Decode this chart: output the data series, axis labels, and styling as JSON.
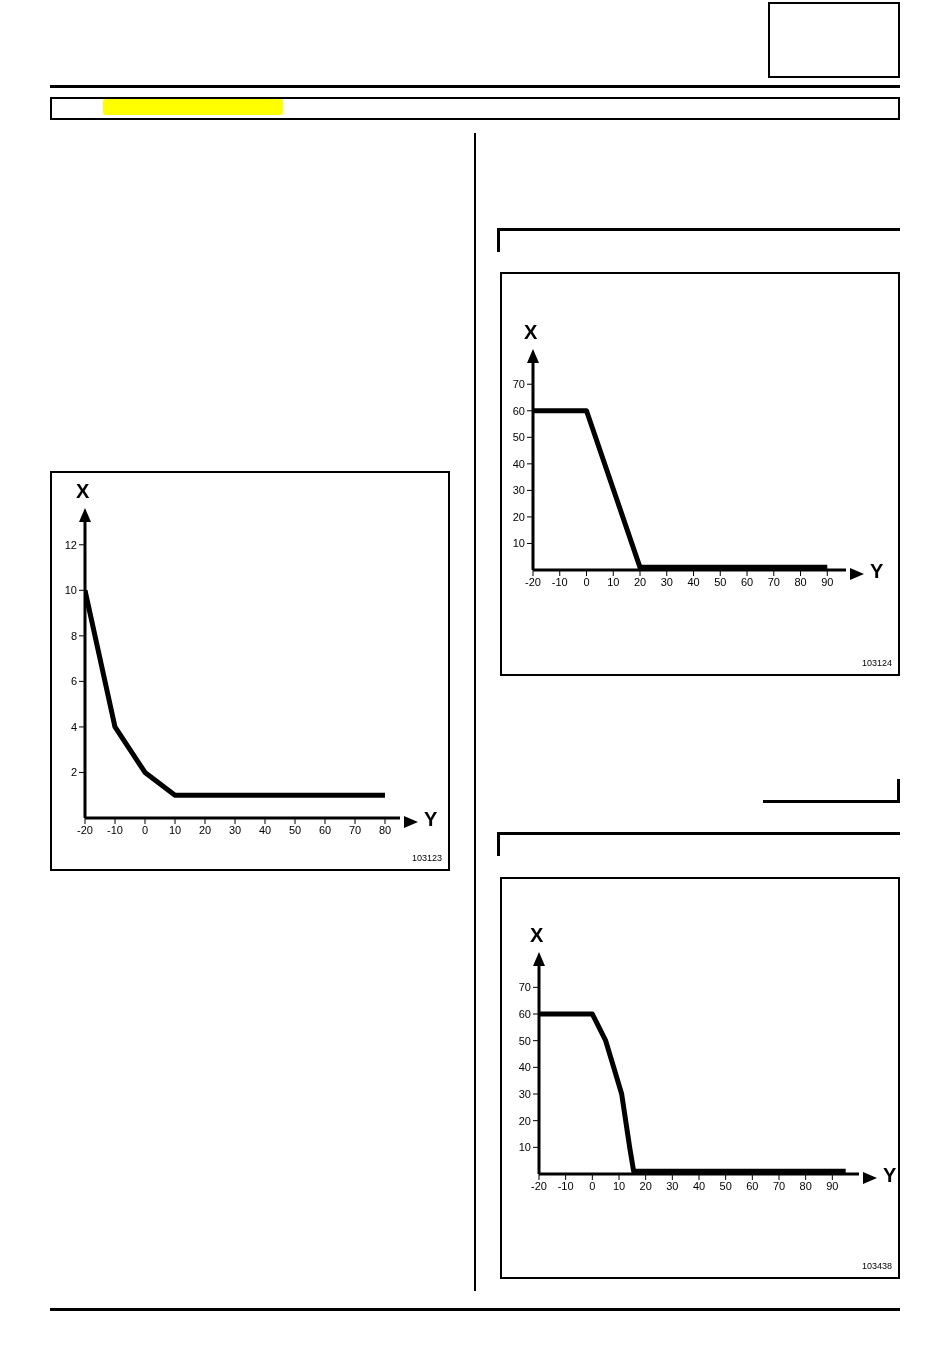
{
  "chart_data": [
    {
      "type": "line",
      "xlabel": "Y",
      "ylabel": "X",
      "x": [
        -20,
        -10,
        0,
        10,
        80
      ],
      "values": [
        10,
        4,
        2,
        1,
        1
      ],
      "color": "#000000",
      "xlim": [
        -20,
        85
      ],
      "xticks": [
        -20,
        -10,
        0,
        10,
        20,
        30,
        40,
        50,
        60,
        70,
        80
      ],
      "ylim": [
        0,
        13
      ],
      "yticks": [
        2,
        4,
        6,
        8,
        10,
        12
      ],
      "marker": "none",
      "annotations": [
        "103123"
      ]
    },
    {
      "type": "line",
      "xlabel": "Y",
      "ylabel": "X",
      "x": [
        -20,
        0,
        20,
        90
      ],
      "values": [
        60,
        60,
        1,
        1
      ],
      "color": "#000000",
      "xlim": [
        -20,
        97
      ],
      "xticks": [
        -20,
        -10,
        0,
        10,
        20,
        30,
        40,
        50,
        60,
        70,
        80,
        90
      ],
      "ylim": [
        0,
        78
      ],
      "yticks": [
        10,
        20,
        30,
        40,
        50,
        60,
        70
      ],
      "marker": "none",
      "annotations": [
        "103124"
      ]
    },
    {
      "type": "line",
      "xlabel": "Y",
      "ylabel": "X",
      "x": [
        -20,
        0,
        5,
        8,
        11,
        12.5,
        14,
        15.5,
        95
      ],
      "values": [
        60,
        60,
        50,
        40,
        30,
        20,
        10,
        1,
        1
      ],
      "color": "#000000",
      "xlim": [
        -20,
        100
      ],
      "xticks": [
        -20,
        -10,
        0,
        10,
        20,
        30,
        40,
        50,
        60,
        70,
        80,
        90
      ],
      "ylim": [
        0,
        78
      ],
      "yticks": [
        10,
        20,
        30,
        40,
        50,
        60,
        70
      ],
      "marker": "none",
      "annotations": [
        "103438"
      ]
    }
  ]
}
